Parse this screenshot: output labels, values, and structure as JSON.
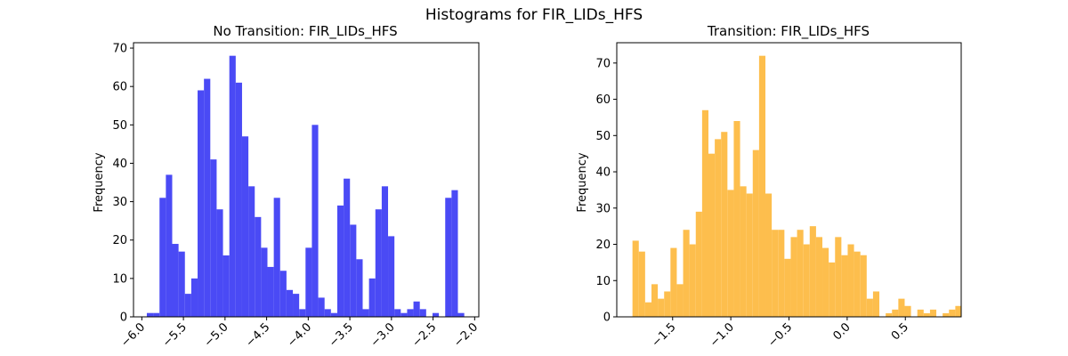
{
  "figure": {
    "suptitle": "Histograms for FIR_LIDs_HFS"
  },
  "chart_data": [
    {
      "type": "bar",
      "title": "No Transition: FIR_LIDs_HFS",
      "xlabel": "",
      "ylabel": "Frequency",
      "color": "#4a4af5",
      "xlim": [
        -6.1,
        -1.95
      ],
      "ylim": [
        0,
        71.4
      ],
      "xticks": [
        -6.0,
        -5.5,
        -5.0,
        -4.5,
        -4.0,
        -3.5,
        -3.0,
        -2.5,
        -2.0
      ],
      "xtick_labels": [
        "−6.0",
        "−5.5",
        "−5.0",
        "−4.5",
        "−4.0",
        "−3.5",
        "−3.0",
        "−2.5",
        "−2.0"
      ],
      "yticks": [
        0,
        10,
        20,
        30,
        40,
        50,
        60,
        70
      ],
      "ytick_labels": [
        "0",
        "10",
        "20",
        "30",
        "40",
        "50",
        "60",
        "70"
      ],
      "bin_start": -5.94,
      "bin_width": 0.0763,
      "values": [
        1,
        1,
        31,
        37,
        19,
        17,
        6,
        10,
        59,
        62,
        41,
        28,
        16,
        68,
        61,
        47,
        34,
        26,
        18,
        13,
        31,
        12,
        7,
        6,
        2,
        18,
        50,
        5,
        2,
        1,
        29,
        36,
        24,
        15,
        2,
        10,
        28,
        34,
        21,
        2,
        1,
        2,
        4,
        2,
        0,
        1,
        0,
        31,
        33,
        1
      ]
    },
    {
      "type": "bar",
      "title": "Transition: FIR_LIDs_HFS",
      "xlabel": "",
      "ylabel": "Frequency",
      "color": "#fdbe4d",
      "xlim": [
        -1.98,
        0.98
      ],
      "ylim": [
        0,
        75.6
      ],
      "xticks": [
        -1.5,
        -1.0,
        -0.5,
        0.0,
        0.5
      ],
      "xtick_labels": [
        "−1.5",
        "−1.0",
        "−0.5",
        "0.0",
        "0.5"
      ],
      "yticks": [
        0,
        10,
        20,
        30,
        40,
        50,
        60,
        70
      ],
      "ytick_labels": [
        "0",
        "10",
        "20",
        "30",
        "40",
        "50",
        "60",
        "70"
      ],
      "bin_start": -1.845,
      "bin_width": 0.0544,
      "values": [
        21,
        18,
        4,
        9,
        5,
        7,
        19,
        9,
        24,
        20,
        29,
        57,
        45,
        49,
        51,
        35,
        54,
        36,
        34,
        46,
        72,
        34,
        24,
        24,
        16,
        22,
        24,
        20,
        25,
        22,
        19,
        15,
        22,
        17,
        20,
        18,
        17,
        5,
        7,
        0,
        1,
        2,
        5,
        3,
        0,
        2,
        1,
        2,
        0,
        1,
        2,
        3
      ]
    }
  ]
}
